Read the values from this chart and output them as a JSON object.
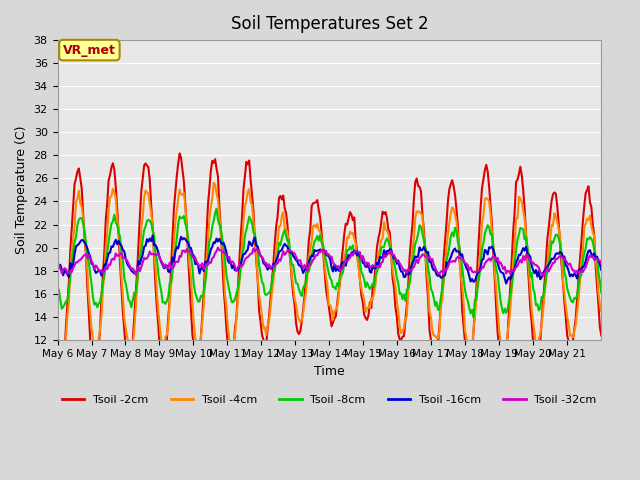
{
  "title": "Soil Temperatures Set 2",
  "xlabel": "Time",
  "ylabel": "Soil Temperature (C)",
  "ylim": [
    12,
    38
  ],
  "yticks": [
    12,
    14,
    16,
    18,
    20,
    22,
    24,
    26,
    28,
    30,
    32,
    34,
    36,
    38
  ],
  "x_labels": [
    "May 6",
    "May 7",
    "May 8",
    "May 9",
    "May 10",
    "May 11",
    "May 12",
    "May 13",
    "May 14",
    "May 15",
    "May 16",
    "May 17",
    "May 18",
    "May 19",
    "May 20",
    "May 21"
  ],
  "series_labels": [
    "Tsoil -2cm",
    "Tsoil -4cm",
    "Tsoil -8cm",
    "Tsoil -16cm",
    "Tsoil -32cm"
  ],
  "series_colors": [
    "#dd0000",
    "#ff8800",
    "#00cc00",
    "#0000cc",
    "#cc00cc"
  ],
  "line_width": 1.5,
  "fig_bg_color": "#d8d8d8",
  "plot_bg_color": "#e8e8e8",
  "annotation_text": "VR_met",
  "annotation_bg": "#ffff99",
  "annotation_border": "#aa8800",
  "annotation_text_color": "#aa0000",
  "n_days": 16,
  "n_per_day": 24
}
